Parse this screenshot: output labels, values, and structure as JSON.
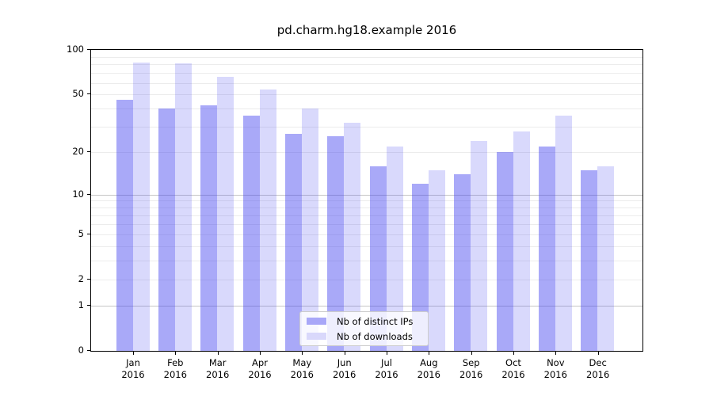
{
  "chart_data": {
    "type": "bar",
    "title": "pd.charm.hg18.example 2016",
    "categories": [
      "Jan",
      "Feb",
      "Mar",
      "Apr",
      "May",
      "Jun",
      "Jul",
      "Aug",
      "Sep",
      "Oct",
      "Nov",
      "Dec"
    ],
    "x_axis": {
      "year_line": "2016"
    },
    "series": [
      {
        "name": "Nb of distinct IPs",
        "color": "#a8a7f8",
        "color_rgba": "rgba(64,64,240,0.45)",
        "values": [
          46,
          40,
          42,
          36,
          27,
          26,
          16,
          12,
          14,
          20,
          22,
          15
        ]
      },
      {
        "name": "Nb of downloads",
        "color": "#d9d8fb",
        "color_rgba": "rgba(64,64,240,0.20)",
        "values": [
          82,
          81,
          66,
          54,
          40,
          32,
          22,
          15,
          24,
          28,
          36,
          16
        ]
      }
    ],
    "y_axis": {
      "scale": "log1p",
      "ylim": [
        0,
        100
      ],
      "tick_labels": [
        0,
        1,
        2,
        5,
        10,
        20,
        50,
        100
      ],
      "major_gridlines": [
        1,
        10
      ],
      "minor_gridlines": [
        2,
        3,
        4,
        5,
        6,
        7,
        8,
        9,
        20,
        30,
        40,
        50,
        60,
        70,
        80,
        90
      ]
    },
    "legend": {
      "entries": [
        "Nb of distinct IPs",
        "Nb of downloads"
      ],
      "position": "lower center"
    },
    "grid": true,
    "colors": {
      "spine": "#000000",
      "major_grid": "#c6c6c6",
      "minor_grid": "#ececec",
      "legend_border": "#cccccc"
    }
  }
}
